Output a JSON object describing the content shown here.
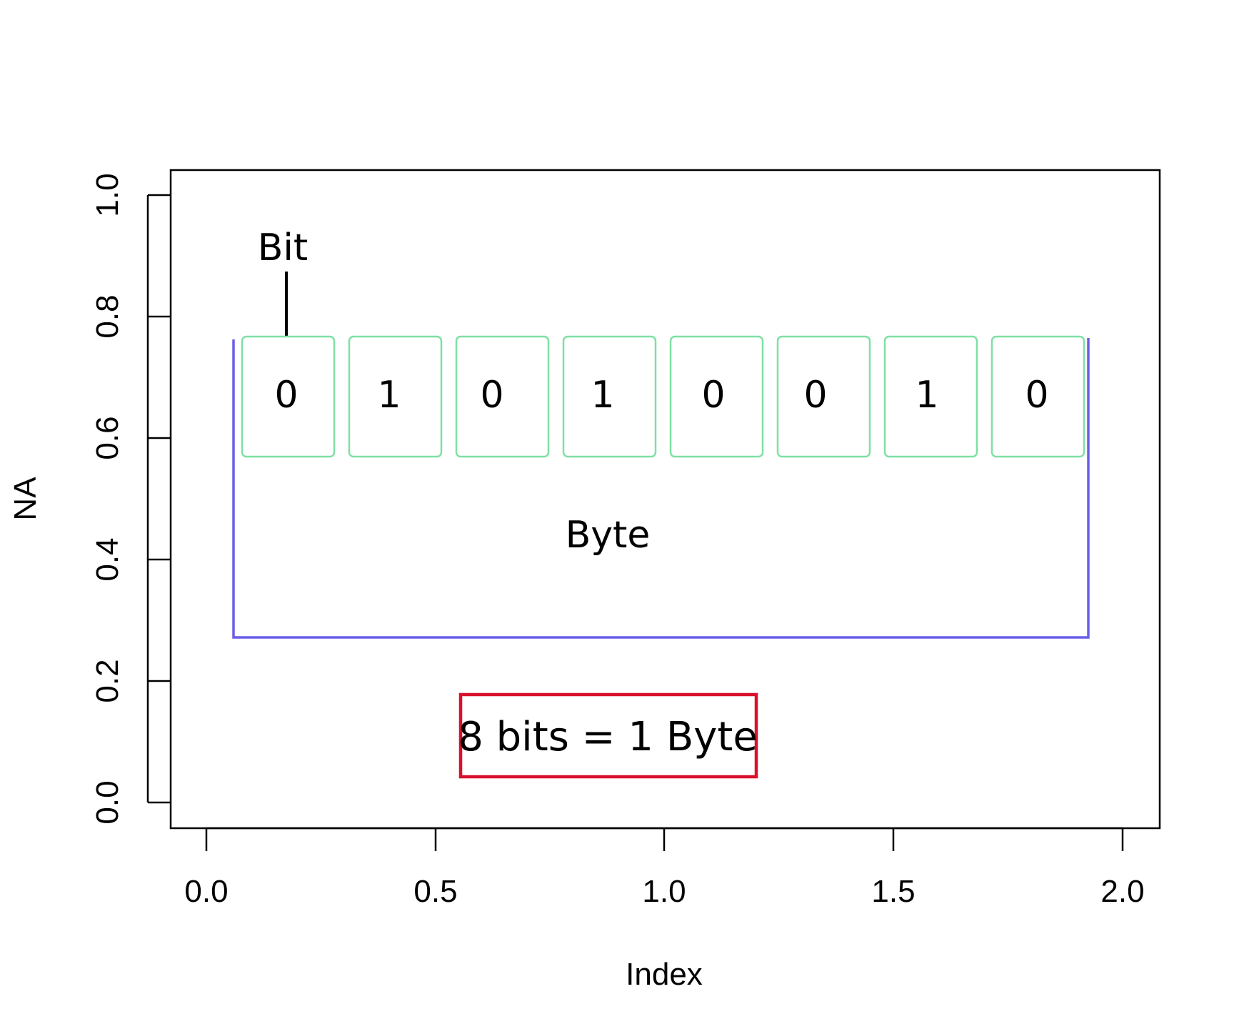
{
  "plot": {
    "x_axis": {
      "label": "Index",
      "ticks": [
        "0.0",
        "0.5",
        "1.0",
        "1.5",
        "2.0"
      ]
    },
    "y_axis": {
      "label": "NA",
      "ticks": [
        "0.0",
        "0.2",
        "0.4",
        "0.6",
        "0.8",
        "1.0"
      ]
    }
  },
  "diagram": {
    "bit_label": "Bit",
    "bits": [
      "0",
      "1",
      "0",
      "1",
      "0",
      "0",
      "1",
      "0"
    ],
    "byte_label": "Byte",
    "equation": "8 bits = 1 Byte",
    "colors": {
      "bit_box": "#7fe0a4",
      "byte_bracket": "#6a5ee8",
      "equation_box": "#d9112a"
    }
  }
}
